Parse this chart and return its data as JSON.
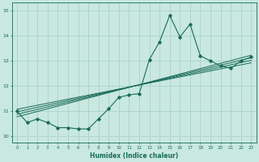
{
  "xlabel": "Humidex (Indice chaleur)",
  "ylabel": "",
  "xlim": [
    -0.5,
    23.5
  ],
  "ylim": [
    9.75,
    15.3
  ],
  "xticks": [
    0,
    1,
    2,
    3,
    4,
    5,
    6,
    7,
    8,
    9,
    10,
    11,
    12,
    13,
    14,
    15,
    16,
    17,
    18,
    19,
    20,
    21,
    22,
    23
  ],
  "yticks": [
    10,
    11,
    12,
    13,
    14,
    15
  ],
  "bg_color": "#c8e8e0",
  "line_color": "#1a6b5a",
  "grid_color": "#a8ccc8",
  "main_x": [
    0,
    1,
    2,
    3,
    4,
    5,
    6,
    7,
    8,
    9,
    10,
    11,
    12,
    13,
    14,
    15,
    16,
    17,
    18,
    19,
    20,
    21,
    22,
    23
  ],
  "main_y": [
    11.0,
    10.55,
    10.7,
    10.55,
    10.35,
    10.35,
    10.3,
    10.3,
    10.7,
    11.1,
    11.55,
    11.65,
    11.7,
    13.05,
    13.75,
    14.8,
    13.95,
    14.45,
    13.2,
    13.0,
    12.8,
    12.7,
    13.0,
    13.15
  ],
  "reg_lines": [
    {
      "x": [
        0,
        23
      ],
      "y": [
        10.78,
        13.22
      ]
    },
    {
      "x": [
        0,
        23
      ],
      "y": [
        10.88,
        13.12
      ]
    },
    {
      "x": [
        0,
        23
      ],
      "y": [
        10.98,
        13.02
      ]
    },
    {
      "x": [
        0,
        23
      ],
      "y": [
        11.08,
        12.92
      ]
    }
  ]
}
